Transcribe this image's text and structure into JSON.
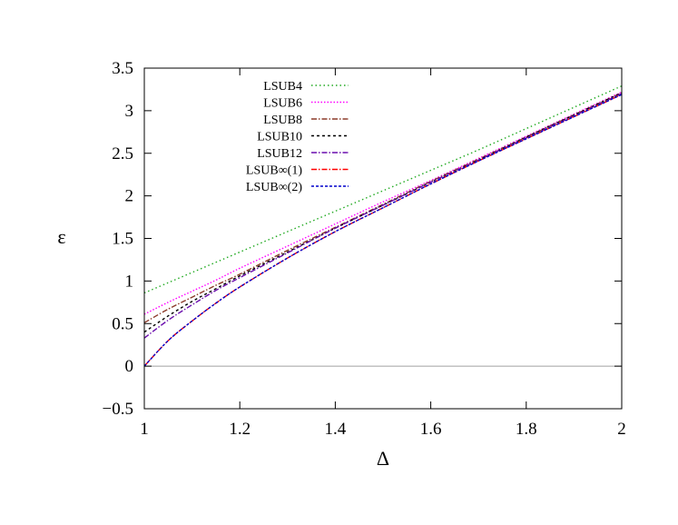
{
  "chart_data": {
    "type": "line",
    "xlabel": "Δ",
    "ylabel": "ε",
    "xlim": [
      1,
      2
    ],
    "ylim": [
      -0.5,
      3.5
    ],
    "xticks": [
      1,
      1.2,
      1.4,
      1.6,
      1.8,
      2
    ],
    "xtick_labels": [
      "1",
      "1.2",
      "1.4",
      "1.6",
      "1.8",
      "2"
    ],
    "yticks": [
      -0.5,
      0,
      0.5,
      1,
      1.5,
      2,
      2.5,
      3,
      3.5
    ],
    "ytick_labels": [
      "−0.5",
      "0",
      "0.5",
      "1",
      "1.5",
      "2",
      "2.5",
      "3",
      "3.5"
    ],
    "grid": false,
    "legend_position": "top-left",
    "reference_line": {
      "y": 0,
      "color": "#a0a0a0"
    },
    "x": [
      1,
      1.05,
      1.1,
      1.15,
      1.2,
      1.3,
      1.4,
      1.5,
      1.6,
      1.7,
      1.8,
      1.9,
      2
    ],
    "series": [
      {
        "name": "LSUB4",
        "color": "#22aa22",
        "dash": "1.5,3",
        "values": [
          0.86,
          0.98,
          1.1,
          1.22,
          1.34,
          1.58,
          1.82,
          2.06,
          2.3,
          2.54,
          2.79,
          3.04,
          3.29
        ]
      },
      {
        "name": "LSUB6",
        "color": "#ff00ff",
        "dash": "1.5,2",
        "values": [
          0.61,
          0.75,
          0.88,
          1.01,
          1.15,
          1.41,
          1.67,
          1.93,
          2.18,
          2.44,
          2.7,
          2.96,
          3.22
        ]
      },
      {
        "name": "LSUB8",
        "color": "#8b3a2a",
        "dash": "6,2,1.5,2",
        "values": [
          0.51,
          0.67,
          0.81,
          0.95,
          1.08,
          1.36,
          1.63,
          1.9,
          2.17,
          2.43,
          2.69,
          2.95,
          3.21
        ]
      },
      {
        "name": "LSUB10",
        "color": "#000000",
        "dash": "3,3",
        "values": [
          0.4,
          0.59,
          0.76,
          0.91,
          1.06,
          1.34,
          1.62,
          1.89,
          2.16,
          2.42,
          2.69,
          2.95,
          3.21
        ]
      },
      {
        "name": "LSUB12",
        "color": "#6a0dad",
        "dash": "6,2,1.5,2",
        "values": [
          0.33,
          0.54,
          0.72,
          0.89,
          1.04,
          1.33,
          1.62,
          1.89,
          2.16,
          2.42,
          2.68,
          2.94,
          3.2
        ]
      },
      {
        "name": "LSUB∞(1)",
        "color": "#ff0000",
        "dash": "6,2,1.5,2",
        "values": [
          0.0,
          0.3,
          0.53,
          0.74,
          0.93,
          1.27,
          1.58,
          1.86,
          2.14,
          2.41,
          2.67,
          2.93,
          3.19
        ]
      },
      {
        "name": "LSUB∞(2)",
        "color": "#0000cc",
        "dash": "3,2",
        "values": [
          0.0,
          0.3,
          0.53,
          0.74,
          0.93,
          1.27,
          1.58,
          1.86,
          2.14,
          2.41,
          2.67,
          2.93,
          3.19
        ]
      }
    ]
  }
}
